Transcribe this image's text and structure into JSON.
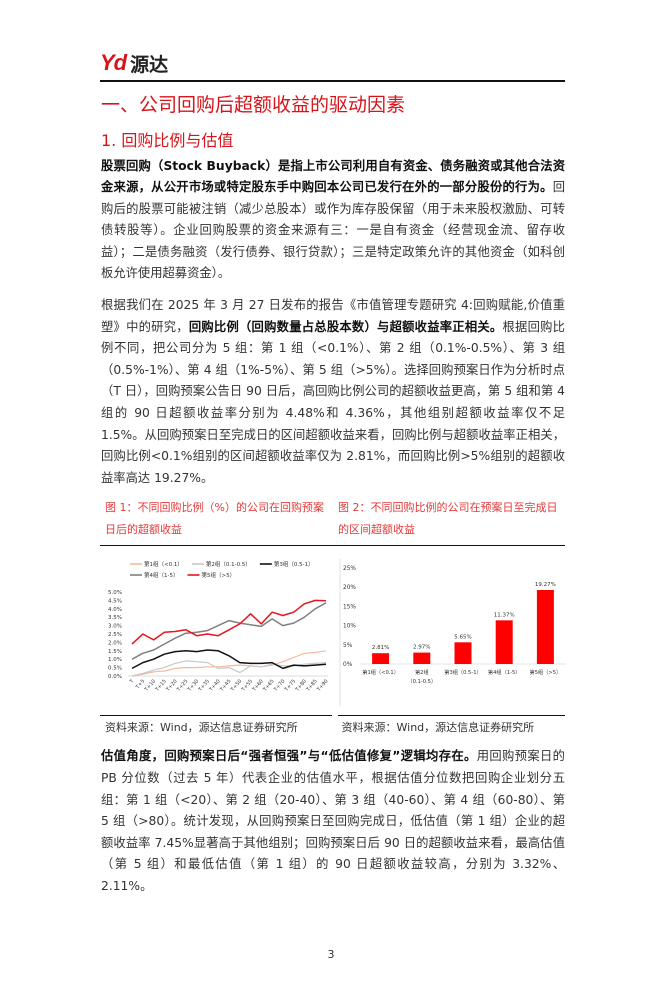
{
  "header": {
    "logo_mark": "Yd",
    "logo_text": "源达"
  },
  "section_title": "一、公司回购后超额收益的驱动因素",
  "subsection_title": "1. 回购比例与估值",
  "paragraph1": {
    "bold": "股票回购（Stock Buyback）是指上市公司利用自有资金、债务融资或其他合法资金来源，从公开市场或特定股东手中购回本公司已发行在外的一部分股份的行为。",
    "text": "回购后的股票可能被注销（减少总股本）或作为库存股保留（用于未来股权激励、可转债转股等）。企业回购股票的资金来源有三：一是自有资金（经营现金流、留存收益）；二是债务融资（发行债券、银行贷款）；三是特定政策允许的其他资金（如科创板允许使用超募资金）。"
  },
  "paragraph2": {
    "text_a": "根据我们在 2025 年 3 月 27 日发布的报告《市值管理专题研究 4:回购赋能,价值重塑》中的研究，",
    "bold": "回购比例（回购数量占总股本数）与超额收益率正相关。",
    "text_b": "根据回购比例不同，把公司分为 5 组：第 1 组（<0.1%）、第 2 组（0.1%-0.5%）、第 3 组（0.5%-1%）、第 4 组（1%-5%）、第 5 组（>5%）。选择回购预案日作为分析时点（T 日），回购预案公告日 90 日后，高回购比例公司的超额收益更高，第 5 组和第 4 组的 90 日超额收益率分别为 4.48%和 4.36%，其他组别超额收益率仅不足 1.5%。从回购预案日至完成日的区间超额收益来看，回购比例与超额收益率正相关，回购比例<0.1%组别的区间超额收益率仅为 2.81%，而回购比例>5%组别的超额收益率高达 19.27%。"
  },
  "figure1": {
    "caption": "图 1：不同回购比例（%）的公司在回购预案日后的超额收益",
    "source": "资料来源：Wind，源达信息证券研究所"
  },
  "figure2": {
    "caption": "图 2：不同回购比例的公司在预案日至完成日的区间超额收益",
    "source": "资料来源：Wind，源达信息证券研究所"
  },
  "chart_data": [
    {
      "type": "line",
      "categories": [
        "T",
        "T+5",
        "T+10",
        "T+15",
        "T+20",
        "T+25",
        "T+30",
        "T+35",
        "T+40",
        "T+45",
        "T+50",
        "T+55",
        "T+60",
        "T+65",
        "T+70",
        "T+75",
        "T+80",
        "T+85",
        "T+90"
      ],
      "yticks": [
        "0.0%",
        "0.5%",
        "1.0%",
        "1.5%",
        "2.0%",
        "2.5%",
        "3.0%",
        "3.5%",
        "4.0%",
        "4.5%",
        "5.0%"
      ],
      "ylim": [
        0,
        5
      ],
      "legend": "top",
      "series": [
        {
          "name": "第1组（<0.1）",
          "color": "#f4b99a",
          "values": [
            0.0,
            0.1,
            0.25,
            0.3,
            0.45,
            0.5,
            0.5,
            0.55,
            0.55,
            0.6,
            0.65,
            0.6,
            0.55,
            0.65,
            0.85,
            1.1,
            1.35,
            1.4,
            1.5
          ]
        },
        {
          "name": "第2组（0.1-0.5）",
          "color": "#c8c8c8",
          "values": [
            0.0,
            0.15,
            0.35,
            0.5,
            0.75,
            0.9,
            0.85,
            0.8,
            0.45,
            0.5,
            0.2,
            0.6,
            0.55,
            0.7,
            0.6,
            0.6,
            0.7,
            0.75,
            0.8
          ]
        },
        {
          "name": "第3组（0.5-1）",
          "color": "#111111",
          "values": [
            0.45,
            0.8,
            1.0,
            1.3,
            1.45,
            1.5,
            1.45,
            1.55,
            1.5,
            1.2,
            0.8,
            0.75,
            0.75,
            0.8,
            0.45,
            0.65,
            0.6,
            0.65,
            0.7
          ]
        },
        {
          "name": "第4组（1-5）",
          "color": "#808080",
          "values": [
            1.0,
            1.35,
            1.55,
            1.9,
            2.25,
            2.55,
            2.6,
            2.7,
            3.0,
            3.3,
            3.15,
            3.05,
            2.95,
            3.4,
            3.0,
            3.15,
            3.5,
            4.0,
            4.36
          ]
        },
        {
          "name": "第5组（>5）",
          "color": "#e8141c",
          "values": [
            1.9,
            2.5,
            2.15,
            2.6,
            2.65,
            2.75,
            2.4,
            2.5,
            2.4,
            2.75,
            3.1,
            3.7,
            3.1,
            3.8,
            3.6,
            3.8,
            4.3,
            4.5,
            4.48
          ]
        }
      ]
    },
    {
      "type": "bar",
      "categories": [
        "第1组（<0.1）",
        "第2组（0.1-0.5）",
        "第3组（0.5-1）",
        "第4组（1-5）",
        "第5组（>5）"
      ],
      "values": [
        2.81,
        2.97,
        5.65,
        11.37,
        19.27
      ],
      "data_labels": [
        "2.81%",
        "2.97%",
        "5.65%",
        "11.37%",
        "19.27%"
      ],
      "yticks": [
        "0%",
        "5%",
        "10%",
        "15%",
        "20%",
        "25%"
      ],
      "ylim": [
        0,
        25
      ],
      "color": "#ff0000"
    }
  ],
  "paragraph3": {
    "bold": "估值角度，回购预案日后“强者恒强”与“低估值修复”逻辑均存在。",
    "text": "用回购预案日的 PB 分位数（过去 5 年）代表企业的估值水平，根据估值分位数把回购企业划分五组：第 1 组（<20）、第 2 组（20-40）、第 3 组（40-60）、第 4 组（60-80）、第 5 组（>80）。统计发现，从回购预案日至回购完成日，低估值（第 1 组）企业的超额收益率 7.45%显著高于其他组别；回购预案日后 90 日的超额收益来看，最高估值（第 5 组）和最低估值（第 1 组）的 90 日超额收益较高，分别为 3.32%、2.11%。"
  },
  "page_number": "3"
}
